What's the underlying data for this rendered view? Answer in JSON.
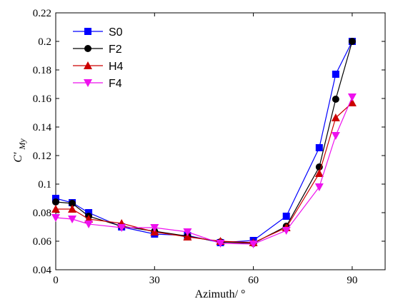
{
  "chart_data": {
    "type": "line",
    "xlabel": "Azimuth/ °",
    "ylabel": "C′My",
    "ylabel_main": "C′",
    "ylabel_sub": "My",
    "xlim": [
      0,
      100
    ],
    "ylim": [
      0.04,
      0.22
    ],
    "xticks": [
      0,
      30,
      60,
      90
    ],
    "yticks": [
      0.04,
      0.06,
      0.08,
      0.1,
      0.12,
      0.14,
      0.16,
      0.18,
      0.2,
      0.22
    ],
    "ytick_labels": [
      "0.04",
      "0.06",
      "0.08",
      "0.1",
      "0.12",
      "0.14",
      "0.16",
      "0.18",
      "0.2",
      "0.22"
    ],
    "grid": false,
    "legend_position": "top-left",
    "series": [
      {
        "name": "S0",
        "color": "#0000ff",
        "marker": "square",
        "x": [
          0,
          5,
          10,
          20,
          30,
          40,
          50,
          60,
          70,
          80,
          85,
          90
        ],
        "y": [
          0.09,
          0.087,
          0.08,
          0.07,
          0.065,
          0.064,
          0.059,
          0.0605,
          0.0775,
          0.1255,
          0.177,
          0.2
        ]
      },
      {
        "name": "F2",
        "color": "#000000",
        "marker": "circle",
        "x": [
          0,
          5,
          10,
          20,
          30,
          40,
          50,
          60,
          70,
          80,
          85,
          90
        ],
        "y": [
          0.0875,
          0.0865,
          0.0775,
          0.0705,
          0.067,
          0.0635,
          0.0595,
          0.0585,
          0.0705,
          0.112,
          0.1595,
          0.2
        ]
      },
      {
        "name": "H4",
        "color": "#cc0000",
        "marker": "triangle-up",
        "x": [
          0,
          5,
          10,
          20,
          30,
          40,
          50,
          60,
          70,
          80,
          85,
          90
        ],
        "y": [
          0.0825,
          0.0825,
          0.0755,
          0.0725,
          0.0665,
          0.063,
          0.06,
          0.059,
          0.0695,
          0.1075,
          0.1465,
          0.157
        ]
      },
      {
        "name": "F4",
        "color": "#ee11ee",
        "marker": "triangle-down",
        "x": [
          0,
          5,
          10,
          20,
          30,
          40,
          50,
          60,
          70,
          80,
          85,
          90
        ],
        "y": [
          0.0765,
          0.0755,
          0.072,
          0.0695,
          0.0695,
          0.0665,
          0.0585,
          0.058,
          0.0675,
          0.098,
          0.134,
          0.161
        ]
      }
    ]
  }
}
